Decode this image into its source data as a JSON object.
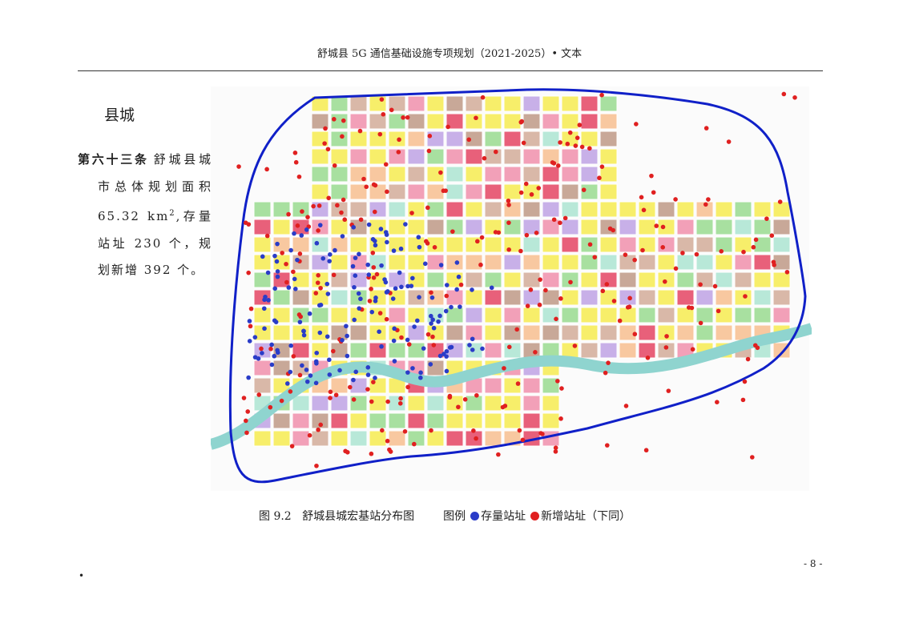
{
  "header": {
    "title": "舒城县 5G 通信基础设施专项规划（2021-2025）• 文本"
  },
  "section": {
    "heading": "县城"
  },
  "article": {
    "label": "第六十三条",
    "text_before_sup": "舒城县城市总体规划面积 65.32 km",
    "sup": "2",
    "text_after_sup": ",存量站址 230 个，规划新增 392 个。"
  },
  "figure": {
    "caption": "图 9.2   舒城县城宏基站分布图",
    "legend_title": "图例",
    "legend_items": [
      "存量站址",
      "新增站址（下同）"
    ]
  },
  "footer": {
    "page_number": "- 8 -"
  }
}
